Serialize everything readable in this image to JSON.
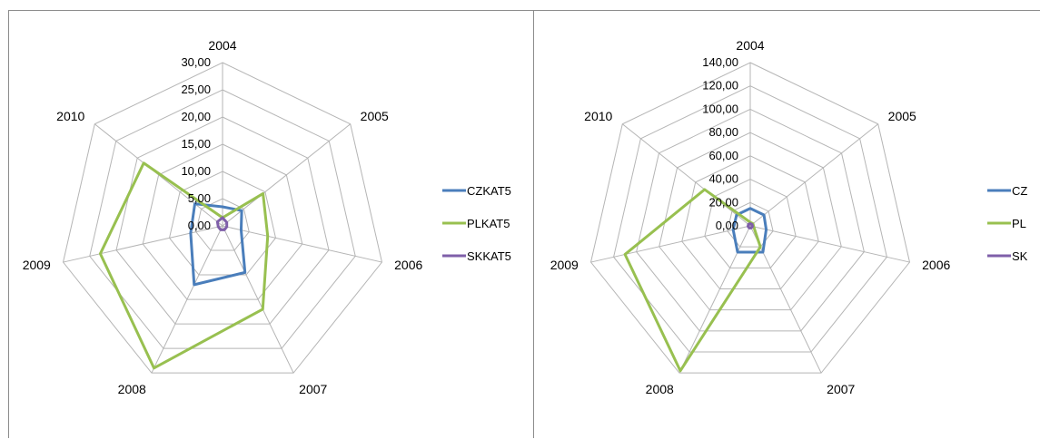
{
  "chart_data": [
    {
      "type": "radar",
      "categories": [
        "2004",
        "2005",
        "2006",
        "2007",
        "2008",
        "2009",
        "2010"
      ],
      "tick_labels": [
        "0,00",
        "5,00",
        "10,00",
        "15,00",
        "20,00",
        "25,00",
        "30,00"
      ],
      "rlim": [
        0,
        30
      ],
      "grid": true,
      "legend_position": "right",
      "series": [
        {
          "name": "CZKAT5",
          "color": "#4a7ebb",
          "values": [
            3.5,
            4.5,
            3.5,
            9.5,
            12.0,
            6.0,
            6.5
          ]
        },
        {
          "name": "PLKAT5",
          "color": "#98c050",
          "values": [
            1.5,
            9.5,
            8.5,
            17.0,
            29.0,
            23.0,
            18.5
          ]
        },
        {
          "name": "SKKAT5",
          "color": "#7f5fa9",
          "values": [
            1.5,
            1.0,
            0.8,
            0.8,
            0.8,
            0.8,
            1.2
          ]
        }
      ]
    },
    {
      "type": "radar",
      "categories": [
        "2004",
        "2005",
        "2006",
        "2007",
        "2008",
        "2009",
        "2010"
      ],
      "tick_labels": [
        "0,00",
        "20,00",
        "40,00",
        "60,00",
        "80,00",
        "100,00",
        "120,00",
        "140,00"
      ],
      "rlim": [
        0,
        140
      ],
      "grid": true,
      "legend_position": "right",
      "series": [
        {
          "name": "CZ",
          "color": "#4a7ebb",
          "values": [
            15,
            15,
            14,
            25,
            25,
            15,
            15
          ]
        },
        {
          "name": "PL",
          "color": "#98c050",
          "values": [
            3,
            3,
            3,
            20,
            138,
            110,
            50
          ]
        },
        {
          "name": "SK",
          "color": "#7f5fa9",
          "values": [
            2,
            2,
            2,
            2,
            2,
            2,
            2
          ]
        }
      ]
    }
  ]
}
